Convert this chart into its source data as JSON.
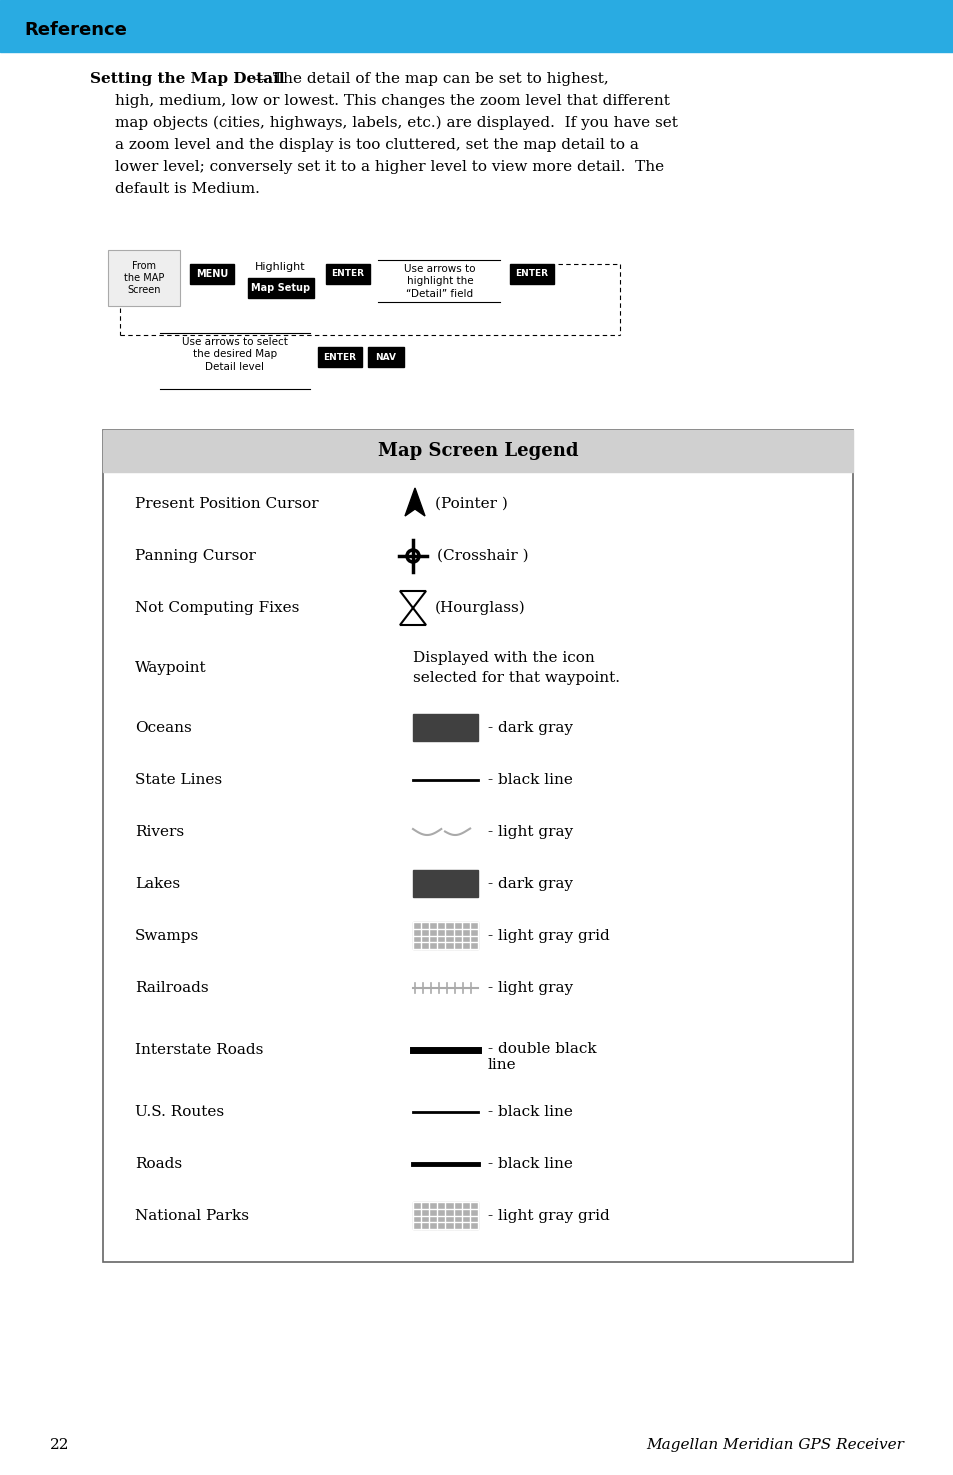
{
  "page_bg": "#ffffff",
  "header_bg": "#29abe2",
  "header_text": "Reference",
  "header_text_color": "#000000",
  "legend_title": "Map Screen Legend",
  "legend_items": [
    {
      "label": "Present Position Cursor",
      "symbol": "pointer",
      "desc": "(Pointer )"
    },
    {
      "label": "Panning Cursor",
      "symbol": "crosshair",
      "desc": "(Crosshair )"
    },
    {
      "label": "Not Computing Fixes",
      "symbol": "hourglass",
      "desc": "(Hourglass)"
    },
    {
      "label": "Waypoint",
      "symbol": "waypoint_text",
      "desc": "Displayed with the icon\nselected for that waypoint."
    },
    {
      "label": "Oceans",
      "symbol": "dark_rect",
      "desc": "- dark gray"
    },
    {
      "label": "State Lines",
      "symbol": "black_line_thin",
      "desc": "- black line"
    },
    {
      "label": "Rivers",
      "symbol": "rivers",
      "desc": "- light gray"
    },
    {
      "label": "Lakes",
      "symbol": "dark_rect",
      "desc": "- dark gray"
    },
    {
      "label": "Swamps",
      "symbol": "grid_rect",
      "desc": "- light gray grid"
    },
    {
      "label": "Railroads",
      "symbol": "railroad",
      "desc": "- light gray"
    },
    {
      "label": "Interstate Roads",
      "symbol": "thick_black_line",
      "desc": "- double black\nline"
    },
    {
      "label": "U.S. Routes",
      "symbol": "black_line_thin",
      "desc": "- black line"
    },
    {
      "label": "Roads",
      "symbol": "black_line_medium",
      "desc": "- black line"
    },
    {
      "label": "National Parks",
      "symbol": "grid_rect",
      "desc": "- light gray grid"
    }
  ],
  "footer_page": "22",
  "footer_title": "Magellan Meridian GPS Receiver",
  "dark_gray": "#404040",
  "light_gray": "#aaaaaa",
  "grid_color": "#b0b0b0"
}
